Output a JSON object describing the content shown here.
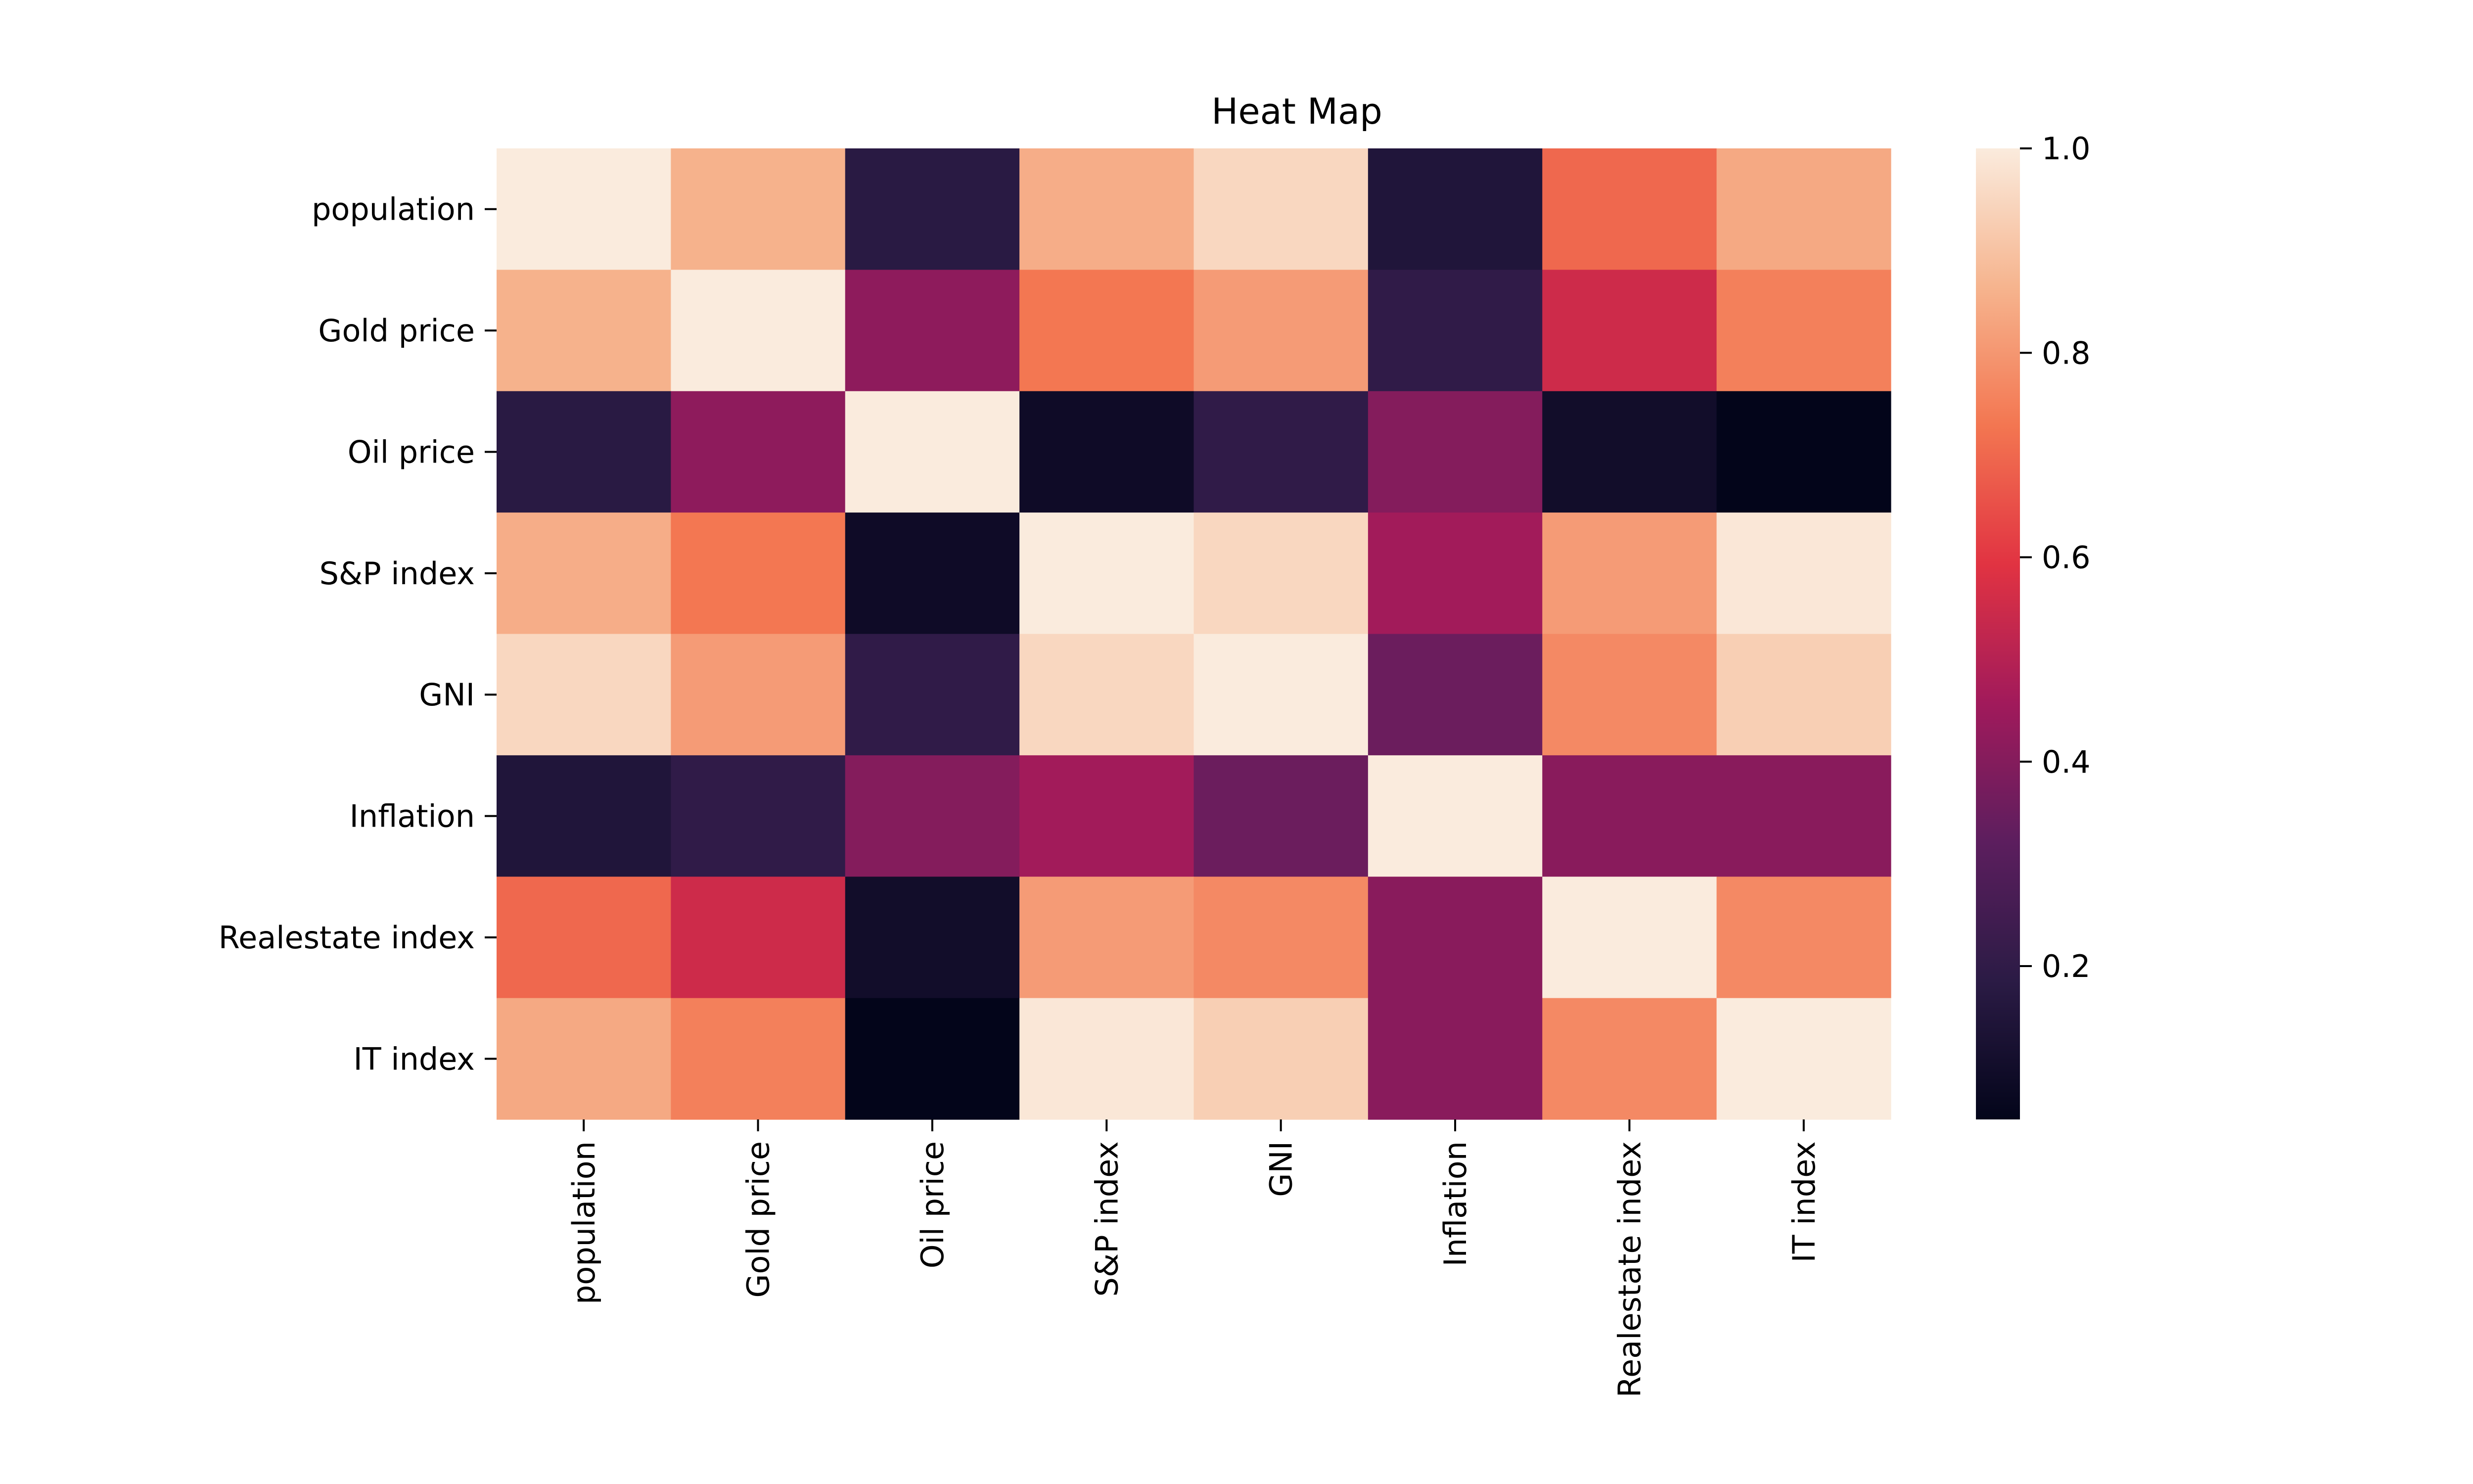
{
  "chart_data": {
    "type": "heatmap",
    "title": "Heat Map",
    "xlabel": "",
    "ylabel": "",
    "x_categories": [
      "population",
      "Gold price",
      "Oil price",
      "S&P index",
      "GNI",
      "Inflation",
      "Realestate index",
      "IT index"
    ],
    "y_categories": [
      "population",
      "Gold price",
      "Oil price",
      "S&P index",
      "GNI",
      "Inflation",
      "Realestate index",
      "IT index"
    ],
    "values": [
      [
        1.0,
        0.86,
        0.18,
        0.85,
        0.95,
        0.15,
        0.7,
        0.84
      ],
      [
        0.86,
        1.0,
        0.42,
        0.73,
        0.81,
        0.2,
        0.55,
        0.75
      ],
      [
        0.18,
        0.42,
        1.0,
        0.09,
        0.2,
        0.4,
        0.1,
        0.05
      ],
      [
        0.85,
        0.73,
        0.09,
        1.0,
        0.95,
        0.46,
        0.81,
        0.99
      ],
      [
        0.95,
        0.81,
        0.2,
        0.95,
        1.0,
        0.35,
        0.77,
        0.93
      ],
      [
        0.15,
        0.2,
        0.4,
        0.46,
        0.35,
        1.0,
        0.41,
        0.41
      ],
      [
        0.7,
        0.55,
        0.1,
        0.81,
        0.77,
        0.41,
        1.0,
        0.77
      ],
      [
        0.84,
        0.75,
        0.05,
        0.99,
        0.93,
        0.41,
        0.77,
        1.0
      ]
    ],
    "colorbar": {
      "min": 0.05,
      "max": 1.0,
      "ticks": [
        0.2,
        0.4,
        0.6,
        0.8,
        1.0
      ],
      "tick_labels": [
        "0.2",
        "0.4",
        "0.6",
        "0.8",
        "1.0"
      ],
      "colormap": "rocket",
      "colormap_stops": [
        "#03051a",
        "#2b1b45",
        "#5c1e5e",
        "#a11a5b",
        "#e13342",
        "#f37651",
        "#f6b48e",
        "#faebdd"
      ]
    },
    "grid": false,
    "legend": "colorbar-right"
  }
}
